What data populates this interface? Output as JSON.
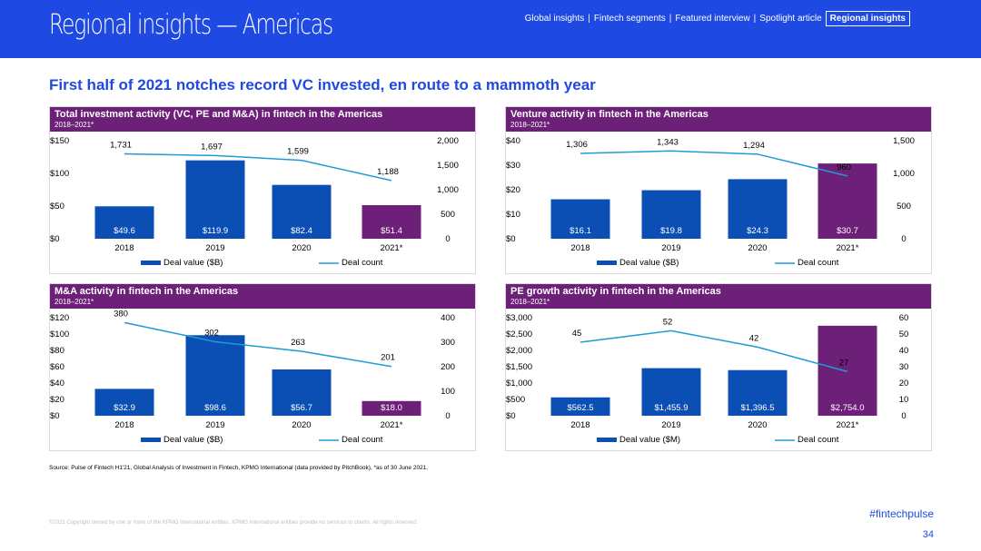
{
  "header": {
    "title": "Regional insights — Americas",
    "nav": [
      "Global insights",
      "Fintech segments",
      "Featured interview",
      "Spotlight article"
    ],
    "nav_active": "Regional insights"
  },
  "headline": "First half of 2021 notches record VC invested, en route to a mammoth year",
  "colors": {
    "header_blue": "#1e49e2",
    "panel_purple": "#6d2077",
    "bar_blue": "#0c4fb4",
    "bar_highlight": "#6d2077",
    "line_blue": "#1e9bd7"
  },
  "chart_data": [
    {
      "type": "bar",
      "title": "Total investment activity (VC, PE and M&A) in fintech in the Americas",
      "subtitle": "2018–2021*",
      "categories": [
        "2018",
        "2019",
        "2020",
        "2021*"
      ],
      "series": [
        {
          "name": "Deal value ($B)",
          "values": [
            49.6,
            119.9,
            82.4,
            51.4
          ],
          "labels": [
            "$49.6",
            "$119.9",
            "$82.4",
            "$51.4"
          ]
        },
        {
          "name": "Deal count",
          "type": "line",
          "values": [
            1731,
            1697,
            1599,
            1188
          ],
          "labels": [
            "1,731",
            "1,697",
            "1,599",
            "1,188"
          ]
        }
      ],
      "left_ticks": [
        "$0",
        "$50",
        "$100",
        "$150"
      ],
      "left_ylim": [
        0,
        150
      ],
      "right_ticks": [
        "0",
        "500",
        "1,000",
        "1,500",
        "2,000"
      ],
      "right_ylim": [
        0,
        2000
      ],
      "highlight_last": true
    },
    {
      "type": "bar",
      "title": "Venture activity in fintech in the Americas",
      "subtitle": "2018–2021*",
      "categories": [
        "2018",
        "2019",
        "2020",
        "2021*"
      ],
      "series": [
        {
          "name": "Deal value ($B)",
          "values": [
            16.1,
            19.8,
            24.3,
            30.7
          ],
          "labels": [
            "$16.1",
            "$19.8",
            "$24.3",
            "$30.7"
          ]
        },
        {
          "name": "Deal count",
          "type": "line",
          "values": [
            1306,
            1343,
            1294,
            960
          ],
          "labels": [
            "1,306",
            "1,343",
            "1,294",
            "960"
          ]
        }
      ],
      "left_ticks": [
        "$0",
        "$10",
        "$20",
        "$30",
        "$40"
      ],
      "left_ylim": [
        0,
        40
      ],
      "right_ticks": [
        "0",
        "500",
        "1,000",
        "1,500"
      ],
      "right_ylim": [
        0,
        1500
      ],
      "highlight_last": true
    },
    {
      "type": "bar",
      "title": "M&A activity in fintech in the Americas",
      "subtitle": "2018–2021*",
      "categories": [
        "2018",
        "2019",
        "2020",
        "2021*"
      ],
      "series": [
        {
          "name": "Deal value ($B)",
          "values": [
            32.9,
            98.6,
            56.7,
            18.0
          ],
          "labels": [
            "$32.9",
            "$98.6",
            "$56.7",
            "$18.0"
          ]
        },
        {
          "name": "Deal count",
          "type": "line",
          "values": [
            380,
            302,
            263,
            201
          ],
          "labels": [
            "380",
            "302",
            "263",
            "201"
          ]
        }
      ],
      "left_ticks": [
        "$0",
        "$20",
        "$40",
        "$60",
        "$80",
        "$100",
        "$120"
      ],
      "left_ylim": [
        0,
        120
      ],
      "right_ticks": [
        "0",
        "100",
        "200",
        "300",
        "400"
      ],
      "right_ylim": [
        0,
        400
      ],
      "highlight_last": true
    },
    {
      "type": "bar",
      "title": "PE growth activity in fintech in the Americas",
      "subtitle": "2018–2021*",
      "categories": [
        "2018",
        "2019",
        "2020",
        "2021*"
      ],
      "series": [
        {
          "name": "Deal value ($M)",
          "values": [
            562.5,
            1455.9,
            1396.5,
            2754.0
          ],
          "labels": [
            "$562.5",
            "$1,455.9",
            "$1,396.5",
            "$2,754.0"
          ]
        },
        {
          "name": "Deal count",
          "type": "line",
          "values": [
            45,
            52,
            42,
            27
          ],
          "labels": [
            "45",
            "52",
            "42",
            "27"
          ]
        }
      ],
      "left_ticks": [
        "$0",
        "$500",
        "$1,000",
        "$1,500",
        "$2,000",
        "$2,500",
        "$3,000"
      ],
      "left_ylim": [
        0,
        3000
      ],
      "right_ticks": [
        "0",
        "10",
        "20",
        "30",
        "40",
        "50",
        "60"
      ],
      "right_ylim": [
        0,
        60
      ],
      "highlight_last": true
    }
  ],
  "source": "Source: Pulse of Fintech H1'21, Global Analysis of Investment in Fintech, KPMG International (data provided by PitchBook), *as of 30 June 2021.",
  "copyright": "©2021 Copyright owned by one or more of the KPMG International entities. KPMG International entities provide no services to clients. All rights reserved.",
  "hashtag": "#fintechpulse",
  "page_number": "34"
}
